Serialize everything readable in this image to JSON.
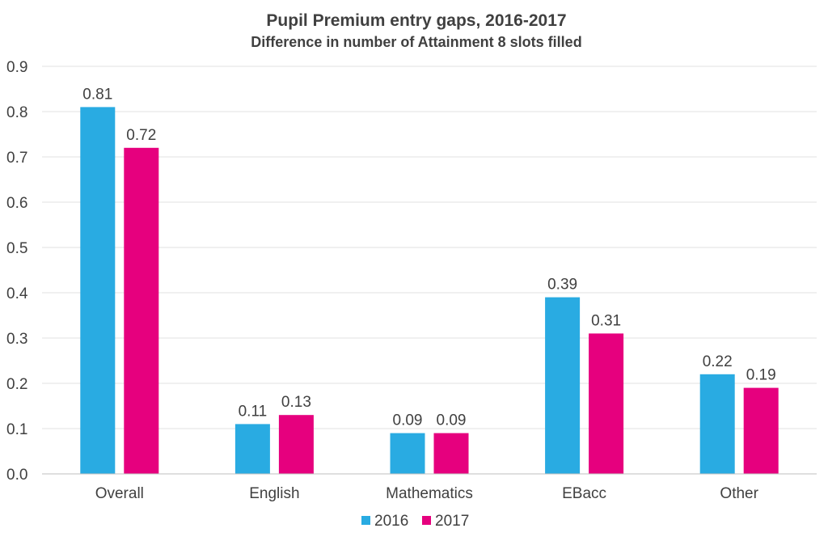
{
  "chart_data": {
    "type": "bar",
    "title": "Pupil Premium entry gaps, 2016-2017",
    "subtitle": "Difference in number of Attainment 8 slots filled",
    "xlabel": "",
    "ylabel": "",
    "ylim": [
      0,
      0.9
    ],
    "yticks": [
      "0.0",
      "0.1",
      "0.2",
      "0.3",
      "0.4",
      "0.5",
      "0.6",
      "0.7",
      "0.8",
      "0.9"
    ],
    "grid": true,
    "legend_position": "bottom",
    "categories": [
      "Overall",
      "English",
      "Mathematics",
      "EBacc",
      "Other"
    ],
    "series": [
      {
        "name": "2016",
        "color": "#29ABE2",
        "values": [
          0.81,
          0.11,
          0.09,
          0.39,
          0.22
        ]
      },
      {
        "name": "2017",
        "color": "#E6007E",
        "values": [
          0.72,
          0.13,
          0.09,
          0.31,
          0.19
        ]
      }
    ]
  }
}
